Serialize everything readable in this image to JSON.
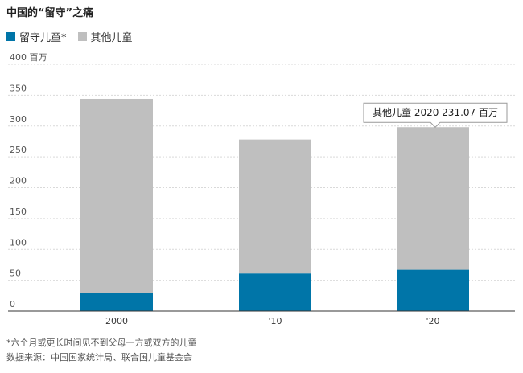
{
  "chart_data": {
    "type": "bar",
    "stacked": true,
    "title": "中国的“留守”之痛",
    "categories": [
      "2000",
      "'10",
      "'20"
    ],
    "series": [
      {
        "name": "留守儿童*",
        "color": "#0075a8",
        "values": [
          29,
          61,
          67
        ]
      },
      {
        "name": "其他儿童",
        "color": "#bfbfbf",
        "values": [
          315,
          217,
          231.07
        ]
      }
    ],
    "ylim": [
      0,
      400
    ],
    "yticks": [
      "0",
      "50",
      "100",
      "150",
      "200",
      "250",
      "300",
      "350",
      "400"
    ],
    "y_unit": "百万",
    "grid": true,
    "legend_position": "top-left",
    "tooltip": {
      "label": "其他儿童 2020 231.07 百万"
    }
  },
  "footnote": "*六个月或更长时间见不到父母一方或双方的儿童",
  "source": "数据来源：中国国家统计局、联合国儿童基金会"
}
